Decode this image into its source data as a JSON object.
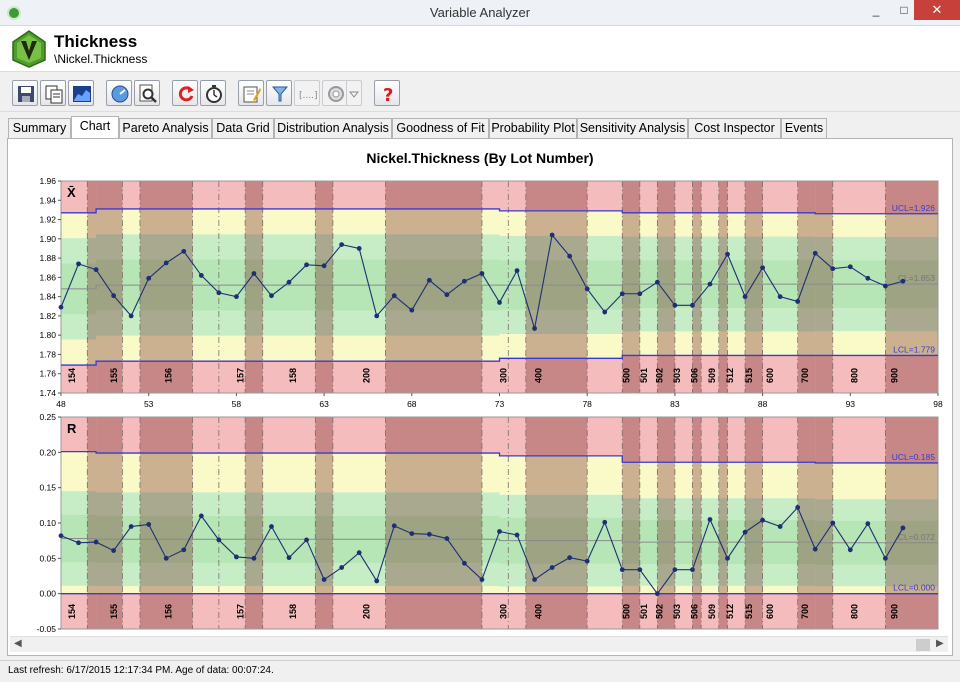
{
  "window": {
    "title": "Variable Analyzer",
    "minimize": "_",
    "maximize": "□",
    "close": "✕"
  },
  "header": {
    "title": "Thickness",
    "path": "\\Nickel.Thickness"
  },
  "toolbar": {
    "icons": [
      "save-icon",
      "copy-icon",
      "chart-image-icon",
      "gauge-icon",
      "zoom-icon",
      "refresh-icon",
      "timer-icon",
      "edit-icon",
      "filter-icon",
      "range-icon",
      "settings-icon",
      "dropdown-arrow-icon",
      "help-icon"
    ],
    "range_label": "[....]",
    "help_label": "?"
  },
  "tabs": [
    {
      "label": "Summary"
    },
    {
      "label": "Chart"
    },
    {
      "label": "Pareto Analysis"
    },
    {
      "label": "Data Grid"
    },
    {
      "label": "Distribution Analysis"
    },
    {
      "label": "Goodness of Fit"
    },
    {
      "label": "Probability Plot"
    },
    {
      "label": "Sensitivity Analysis"
    },
    {
      "label": "Cost Inspector"
    },
    {
      "label": "Events"
    }
  ],
  "active_tab": "Chart",
  "status": {
    "text": "Last refresh: 6/17/2015 12:17:34 PM.  Age of data: 00:07:24."
  },
  "colors": {
    "line": "#1e2f74",
    "limit": "#3a3ad0",
    "center": "#8a8a8a",
    "red_zone": "#f4bcbc",
    "yellow_zone": "#fafac8",
    "green_zone": "#c6edc6"
  },
  "chart_data": {
    "type": "line",
    "title": "Nickel.Thickness (By Lot Number)",
    "x": {
      "min": 48,
      "max": 98,
      "ticks": [
        48,
        53,
        58,
        63,
        68,
        73,
        78,
        83,
        88,
        93,
        98
      ],
      "points": [
        48,
        49,
        50,
        51,
        52,
        53,
        54,
        55,
        56,
        57,
        58,
        59,
        60,
        61,
        62,
        63,
        64,
        65,
        66,
        67,
        68,
        69,
        70,
        71,
        72,
        73,
        74,
        75,
        76,
        77,
        78,
        79,
        80,
        81,
        82,
        83,
        84,
        85,
        86,
        87,
        88,
        89,
        90,
        91,
        92,
        93,
        94,
        95,
        96
      ]
    },
    "lots": {
      "labels": [
        "154",
        "155",
        "156",
        "157",
        "158",
        "200",
        "300",
        "400",
        "500",
        "501",
        "502",
        "503",
        "506",
        "509",
        "512",
        "515",
        "600",
        "700",
        "800",
        "900"
      ],
      "positions": [
        48.8,
        51.2,
        54.3,
        58.4,
        61.4,
        65.6,
        73.4,
        75.4,
        80.4,
        81.4,
        82.3,
        83.3,
        84.3,
        85.3,
        86.3,
        87.4,
        88.6,
        90.6,
        93.4,
        95.7
      ],
      "boundaries": [
        48,
        49.5,
        51.5,
        52.5,
        55.5,
        57.0,
        58.5,
        59.5,
        62.5,
        63.5,
        66.5,
        72.0,
        73.5,
        74.5,
        78.0,
        80.0,
        81.0,
        82.0,
        83.0,
        84.0,
        84.5,
        85.5,
        86.0,
        87.0,
        88.0,
        90.0,
        92.0,
        95.0,
        98
      ],
      "shaded": [
        false,
        true,
        false,
        true,
        false,
        false,
        true,
        false,
        true,
        false,
        true,
        false,
        false,
        true,
        false,
        true,
        false,
        true,
        false,
        true,
        false,
        true,
        false,
        true,
        false,
        true,
        false,
        true,
        false
      ]
    },
    "panels": [
      {
        "symbol": "X̄",
        "ylim": [
          1.74,
          1.96
        ],
        "yticks": [
          "1.74",
          "1.76",
          "1.78",
          "1.80",
          "1.82",
          "1.84",
          "1.86",
          "1.88",
          "1.90",
          "1.92",
          "1.94",
          "1.96"
        ],
        "ytick_values": [
          1.74,
          1.76,
          1.78,
          1.8,
          1.82,
          1.84,
          1.86,
          1.88,
          1.9,
          1.92,
          1.94,
          1.96
        ],
        "values": [
          1.829,
          1.874,
          1.868,
          1.841,
          1.82,
          1.859,
          1.875,
          1.887,
          1.862,
          1.844,
          1.84,
          1.864,
          1.841,
          1.855,
          1.873,
          1.872,
          1.894,
          1.89,
          1.82,
          1.841,
          1.826,
          1.857,
          1.842,
          1.856,
          1.864,
          1.834,
          1.867,
          1.807,
          1.904,
          1.882,
          1.848,
          1.824,
          1.843,
          1.843,
          1.855,
          1.831,
          1.831,
          1.853,
          1.884,
          1.84,
          1.87,
          1.84,
          1.835,
          1.885,
          1.869,
          1.871,
          1.859,
          1.851,
          1.856
        ],
        "ucl_steps": [
          {
            "x0": 48,
            "x1": 50,
            "v": 1.927
          },
          {
            "x0": 50,
            "x1": 73,
            "v": 1.931
          },
          {
            "x0": 73,
            "x1": 80,
            "v": 1.929
          },
          {
            "x0": 80,
            "x1": 91,
            "v": 1.927
          },
          {
            "x0": 91,
            "x1": 98,
            "v": 1.926
          }
        ],
        "lcl_steps": [
          {
            "x0": 48,
            "x1": 50,
            "v": 1.769
          },
          {
            "x0": 50,
            "x1": 73,
            "v": 1.773
          },
          {
            "x0": 73,
            "x1": 80,
            "v": 1.776
          },
          {
            "x0": 80,
            "x1": 91,
            "v": 1.779
          },
          {
            "x0": 91,
            "x1": 98,
            "v": 1.779
          }
        ],
        "cl_steps": [
          {
            "x0": 48,
            "x1": 50,
            "v": 1.848
          },
          {
            "x0": 50,
            "x1": 73,
            "v": 1.852
          },
          {
            "x0": 73,
            "x1": 80,
            "v": 1.852
          },
          {
            "x0": 80,
            "x1": 91,
            "v": 1.853
          },
          {
            "x0": 91,
            "x1": 98,
            "v": 1.853
          }
        ],
        "ucl_label": "UCL=1.926",
        "cl_label": "CL=1.853",
        "lcl_label": "LCL=1.779"
      },
      {
        "symbol": "R",
        "ylim": [
          -0.05,
          0.25
        ],
        "yticks": [
          "-0.05",
          "0.00",
          "0.05",
          "0.10",
          "0.15",
          "0.20",
          "0.25"
        ],
        "ytick_values": [
          -0.05,
          0.0,
          0.05,
          0.1,
          0.15,
          0.2,
          0.25
        ],
        "values": [
          0.082,
          0.072,
          0.073,
          0.061,
          0.095,
          0.098,
          0.05,
          0.062,
          0.11,
          0.076,
          0.052,
          0.05,
          0.095,
          0.051,
          0.076,
          0.02,
          0.037,
          0.058,
          0.018,
          0.096,
          0.085,
          0.084,
          0.078,
          0.043,
          0.02,
          0.088,
          0.083,
          0.02,
          0.037,
          0.051,
          0.046,
          0.101,
          0.034,
          0.034,
          0.0,
          0.034,
          0.034,
          0.105,
          0.05,
          0.087,
          0.104,
          0.095,
          0.122,
          0.063,
          0.1,
          0.062,
          0.099,
          0.05,
          0.093
        ],
        "ucl_steps": [
          {
            "x0": 48,
            "x1": 50,
            "v": 0.201
          },
          {
            "x0": 50,
            "x1": 73,
            "v": 0.199
          },
          {
            "x0": 73,
            "x1": 80,
            "v": 0.195
          },
          {
            "x0": 80,
            "x1": 91,
            "v": 0.186
          },
          {
            "x0": 91,
            "x1": 98,
            "v": 0.185
          }
        ],
        "lcl_steps": [
          {
            "x0": 48,
            "x1": 98,
            "v": 0.0
          }
        ],
        "cl_steps": [
          {
            "x0": 48,
            "x1": 50,
            "v": 0.078
          },
          {
            "x0": 50,
            "x1": 73,
            "v": 0.077
          },
          {
            "x0": 73,
            "x1": 80,
            "v": 0.075
          },
          {
            "x0": 80,
            "x1": 91,
            "v": 0.073
          },
          {
            "x0": 91,
            "x1": 98,
            "v": 0.072
          }
        ],
        "ucl_label": "UCL=0.185",
        "cl_label": "CL=0.072",
        "lcl_label": "LCL=0.000"
      }
    ]
  }
}
